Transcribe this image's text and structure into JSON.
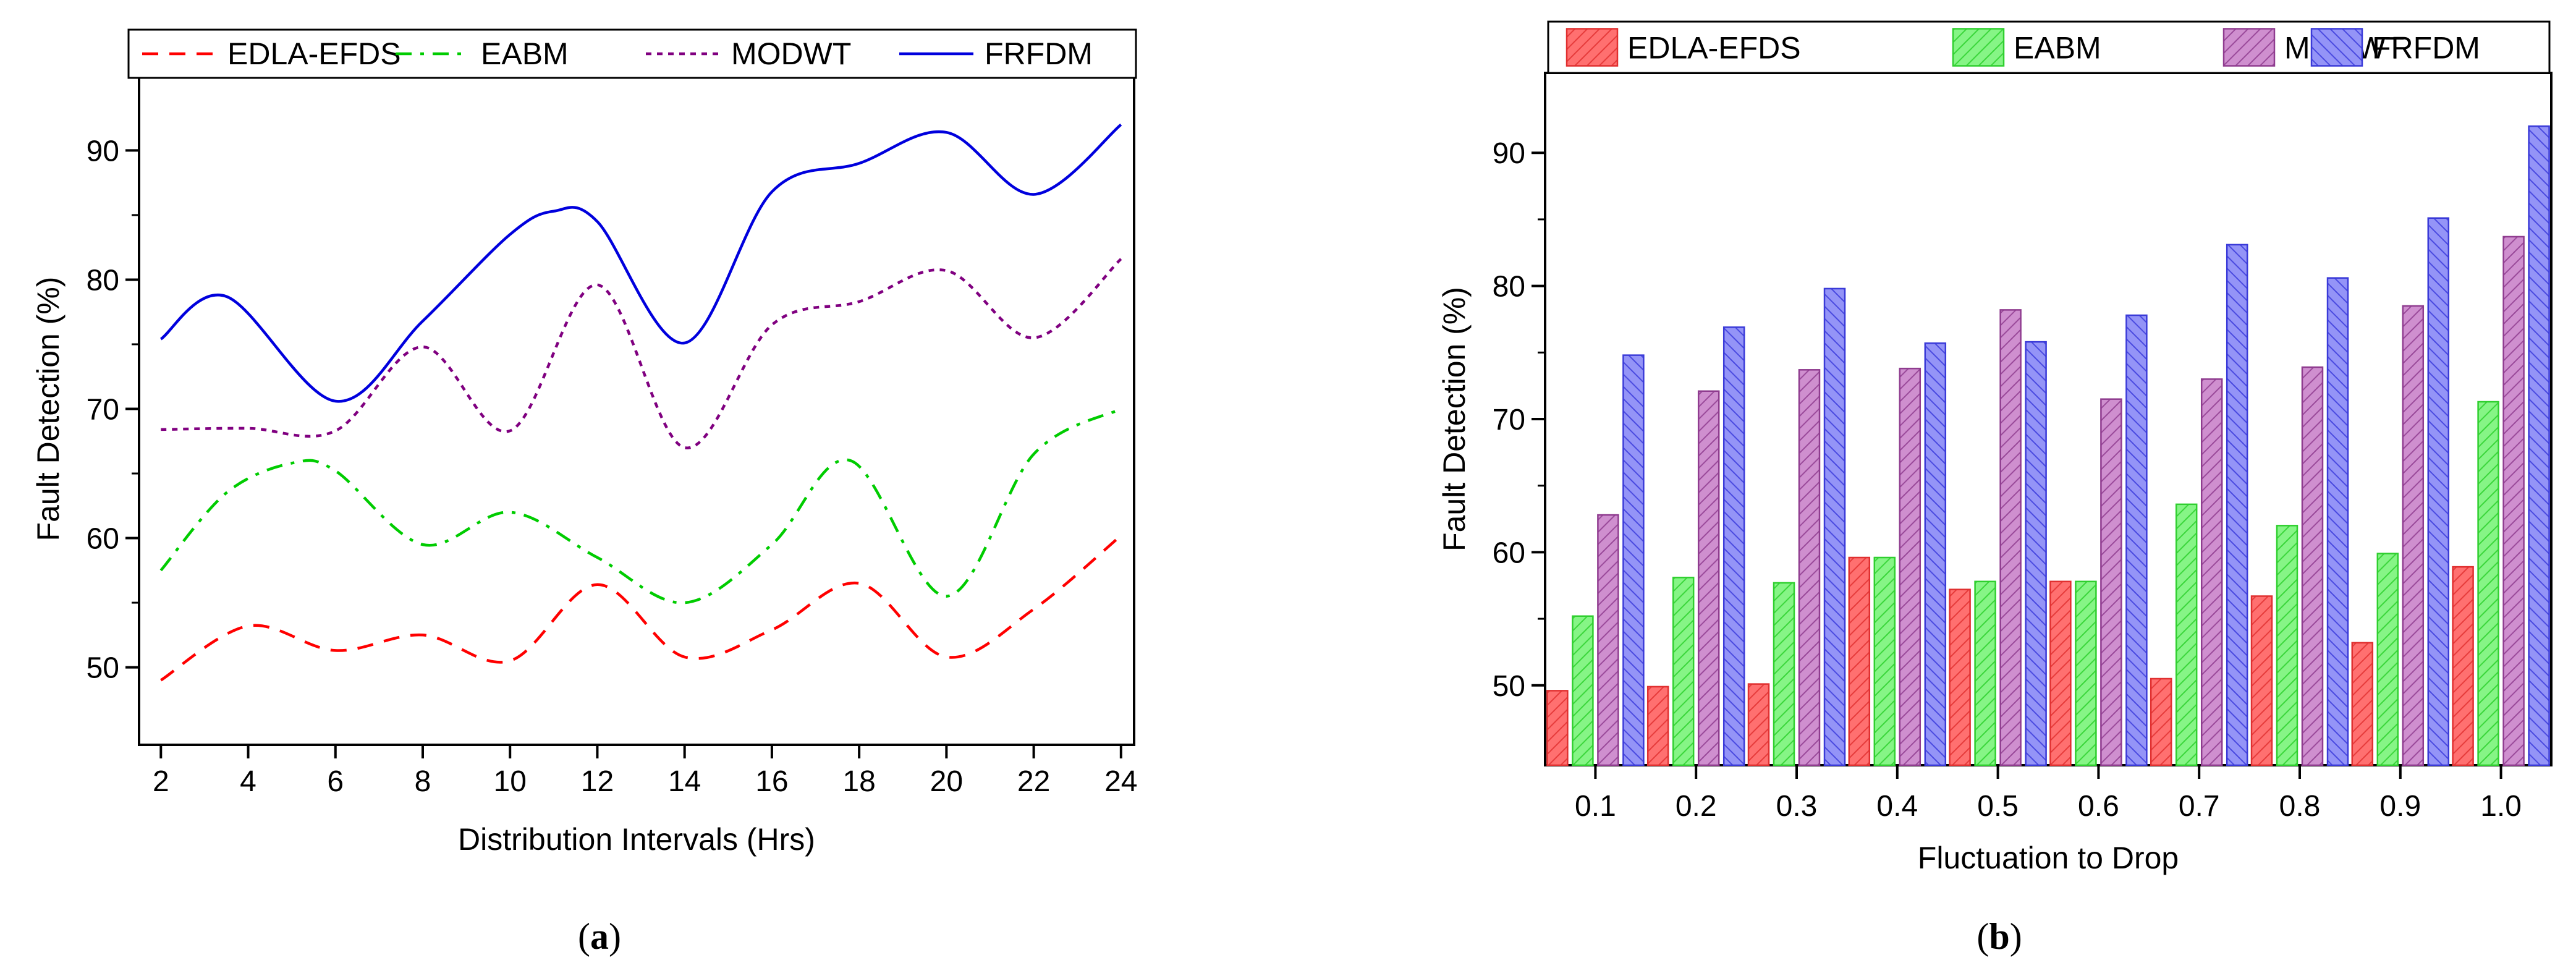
{
  "chart_data": [
    {
      "type": "line",
      "panel_label": "a",
      "xlabel": "Distribution Intervals (Hrs)",
      "ylabel": "Fault Detection (%)",
      "xlim": [
        1.5,
        24.3
      ],
      "ylim": [
        44,
        96
      ],
      "xticks": [
        2,
        4,
        6,
        8,
        10,
        12,
        14,
        16,
        18,
        20,
        22,
        24
      ],
      "yticks": [
        50,
        60,
        70,
        80,
        90
      ],
      "legend_position": "top",
      "series": [
        {
          "name": "EDLA-EFDS",
          "color": "#ff0000",
          "style": "dashed",
          "points": [
            [
              2,
              49.0
            ],
            [
              4,
              53.2
            ],
            [
              6,
              51.3
            ],
            [
              8,
              52.5
            ],
            [
              10,
              50.5
            ],
            [
              12,
              56.4
            ],
            [
              14,
              50.8
            ],
            [
              16,
              52.9
            ],
            [
              18,
              56.5
            ],
            [
              20,
              50.8
            ],
            [
              22,
              54.5
            ],
            [
              24,
              60.2
            ]
          ]
        },
        {
          "name": "EABM",
          "color": "#00cc00",
          "style": "dashdot",
          "points": [
            [
              2,
              57.5
            ],
            [
              3.5,
              63.5
            ],
            [
              5,
              65.8
            ],
            [
              6,
              65.2
            ],
            [
              8,
              59.5
            ],
            [
              10,
              62.0
            ],
            [
              12,
              58.5
            ],
            [
              14,
              55.0
            ],
            [
              16,
              59.5
            ],
            [
              17.8,
              66.0
            ],
            [
              20,
              55.5
            ],
            [
              22,
              66.5
            ],
            [
              24,
              70.0
            ]
          ]
        },
        {
          "name": "MODWT",
          "color": "#800080",
          "style": "dotted",
          "points": [
            [
              2,
              68.4
            ],
            [
              4,
              68.5
            ],
            [
              6,
              68.3
            ],
            [
              8,
              74.8
            ],
            [
              10,
              68.3
            ],
            [
              12,
              79.6
            ],
            [
              14,
              67.0
            ],
            [
              16,
              76.5
            ],
            [
              18,
              78.3
            ],
            [
              20,
              80.7
            ],
            [
              22,
              75.5
            ],
            [
              24,
              81.6
            ]
          ]
        },
        {
          "name": "FRFDM",
          "color": "#0000dd",
          "style": "solid",
          "points": [
            [
              2,
              75.4
            ],
            [
              3.5,
              78.7
            ],
            [
              6,
              70.6
            ],
            [
              8,
              76.8
            ],
            [
              10,
              83.5
            ],
            [
              11,
              85.3
            ],
            [
              12,
              84.5
            ],
            [
              14,
              75.1
            ],
            [
              16,
              86.8
            ],
            [
              18,
              89.0
            ],
            [
              20,
              91.4
            ],
            [
              22,
              86.6
            ],
            [
              24,
              92.0
            ]
          ]
        }
      ]
    },
    {
      "type": "bar",
      "panel_label": "b",
      "xlabel": "Fluctuation to Drop",
      "ylabel": "Fault Detection (%)",
      "ylim": [
        44,
        96
      ],
      "yticks": [
        50,
        60,
        70,
        80,
        90
      ],
      "legend_position": "top",
      "categories": [
        "0.1",
        "0.2",
        "0.3",
        "0.4",
        "0.5",
        "0.6",
        "0.7",
        "0.8",
        "0.9",
        "1.0"
      ],
      "series": [
        {
          "name": "EDLA-EFDS",
          "color": "#ff6b6b",
          "stroke": "#e03030",
          "values": [
            49.6,
            49.9,
            50.1,
            59.6,
            57.2,
            57.8,
            50.5,
            56.7,
            53.2,
            58.9
          ]
        },
        {
          "name": "EABM",
          "color": "#7cf27c",
          "stroke": "#2fcf2f",
          "values": [
            55.2,
            58.1,
            57.7,
            59.6,
            57.8,
            57.8,
            63.6,
            62.0,
            59.9,
            71.3
          ]
        },
        {
          "name": "MODWT",
          "color": "#c77fc7",
          "stroke": "#8f3c8f",
          "values": [
            62.8,
            72.1,
            73.7,
            73.8,
            78.2,
            71.5,
            73.0,
            73.9,
            78.5,
            83.7
          ]
        },
        {
          "name": "FRFDM",
          "color": "#8a8af5",
          "stroke": "#3a3ad8",
          "values": [
            74.8,
            76.9,
            79.8,
            75.7,
            75.8,
            77.8,
            83.1,
            80.6,
            85.1,
            92.0
          ]
        }
      ]
    }
  ],
  "captions": {
    "a": "(a)",
    "b": "(b)",
    "a_letter": "a",
    "b_letter": "b"
  }
}
